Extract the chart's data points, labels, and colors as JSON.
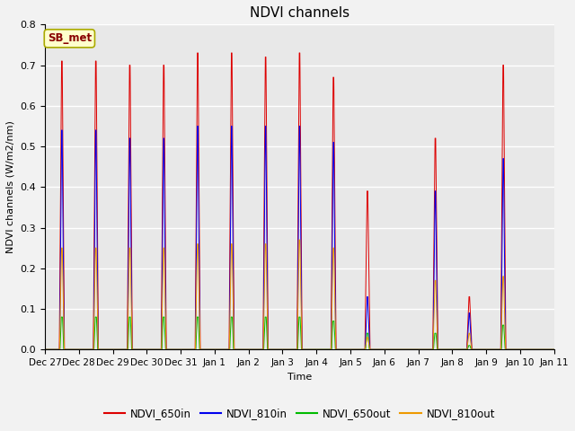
{
  "title": "NDVI channels",
  "ylabel": "NDVI channels (W/m2/nm)",
  "xlabel": "Time",
  "annotation": "SB_met",
  "ylim": [
    0.0,
    0.8
  ],
  "legend_labels": [
    "NDVI_650in",
    "NDVI_810in",
    "NDVI_650out",
    "NDVI_810out"
  ],
  "line_colors": [
    "#dd0000",
    "#0000ee",
    "#00bb00",
    "#ee9900"
  ],
  "background_color": "#e8e8e8",
  "xtick_labels": [
    "Dec 27",
    "Dec 28",
    "Dec 29",
    "Dec 30",
    "Dec 31",
    "Jan 1",
    "Jan 2",
    "Jan 3",
    "Jan 4",
    "Jan 5",
    "Jan 6",
    "Jan 7",
    "Jan 8",
    "Jan 9",
    "Jan 10",
    "Jan 11"
  ],
  "peak_650in": [
    0.71,
    0.71,
    0.7,
    0.7,
    0.73,
    0.73,
    0.72,
    0.73,
    0.67,
    0.39,
    0.0,
    0.52,
    0.13,
    0.7,
    0.0
  ],
  "peak_810in": [
    0.54,
    0.54,
    0.52,
    0.52,
    0.55,
    0.55,
    0.55,
    0.55,
    0.51,
    0.13,
    0.0,
    0.39,
    0.09,
    0.47,
    0.0
  ],
  "peak_650out": [
    0.08,
    0.08,
    0.08,
    0.08,
    0.08,
    0.08,
    0.08,
    0.08,
    0.07,
    0.04,
    0.0,
    0.04,
    0.01,
    0.06,
    0.0
  ],
  "peak_810out": [
    0.25,
    0.25,
    0.25,
    0.25,
    0.26,
    0.26,
    0.26,
    0.27,
    0.25,
    0.03,
    0.0,
    0.17,
    0.04,
    0.18,
    0.0
  ],
  "figsize": [
    6.4,
    4.8
  ],
  "dpi": 100
}
